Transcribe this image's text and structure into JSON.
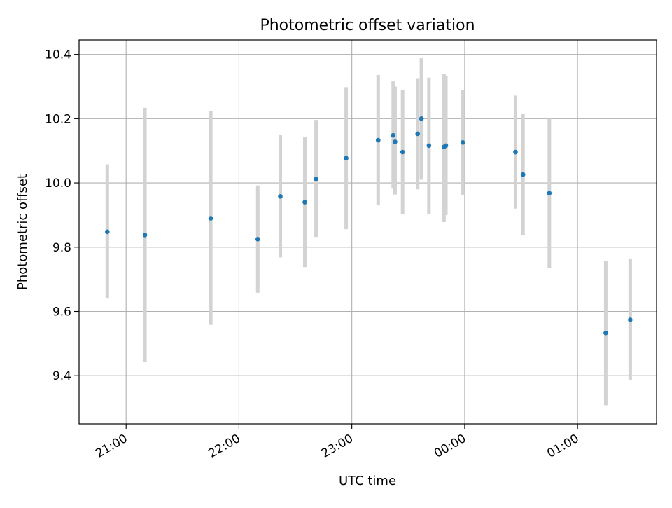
{
  "chart_data": {
    "type": "scatter",
    "title": "Photometric offset variation",
    "xlabel": "UTC time",
    "ylabel": "Photometric offset",
    "x_axis_kind": "time",
    "xlim": [
      "20:35",
      "01:42"
    ],
    "ylim": [
      9.25,
      10.445
    ],
    "xticks": [
      {
        "label": "21:00",
        "time": "21:00"
      },
      {
        "label": "22:00",
        "time": "22:00"
      },
      {
        "label": "23:00",
        "time": "23:00"
      },
      {
        "label": "00:00",
        "time": "00:00"
      },
      {
        "label": "01:00",
        "time": "01:00"
      }
    ],
    "yticks": [
      "9.4",
      "9.6",
      "9.8",
      "10.0",
      "10.2",
      "10.4"
    ],
    "grid": true,
    "colors": {
      "point": "#1f77b4",
      "errorbar": "#d3d3d3",
      "grid": "#b0b0b0",
      "axes": "#000000"
    },
    "points": [
      {
        "time": "20:50",
        "y": 9.848,
        "ylow": 9.64,
        "yhigh": 10.058
      },
      {
        "time": "21:10",
        "y": 9.838,
        "ylow": 9.442,
        "yhigh": 10.234
      },
      {
        "time": "21:45",
        "y": 9.89,
        "ylow": 9.558,
        "yhigh": 10.224
      },
      {
        "time": "22:10",
        "y": 9.825,
        "ylow": 9.658,
        "yhigh": 9.992
      },
      {
        "time": "22:22",
        "y": 9.958,
        "ylow": 9.768,
        "yhigh": 10.15
      },
      {
        "time": "22:35",
        "y": 9.94,
        "ylow": 9.738,
        "yhigh": 10.144
      },
      {
        "time": "22:41",
        "y": 10.012,
        "ylow": 9.832,
        "yhigh": 10.196
      },
      {
        "time": "22:57",
        "y": 10.077,
        "ylow": 9.856,
        "yhigh": 10.298
      },
      {
        "time": "23:14",
        "y": 10.133,
        "ylow": 9.93,
        "yhigh": 10.336
      },
      {
        "time": "23:22",
        "y": 10.148,
        "ylow": 9.982,
        "yhigh": 10.316
      },
      {
        "time": "23:23",
        "y": 10.128,
        "ylow": 9.964,
        "yhigh": 10.3
      },
      {
        "time": "23:27",
        "y": 10.096,
        "ylow": 9.904,
        "yhigh": 10.288
      },
      {
        "time": "23:35",
        "y": 10.153,
        "ylow": 9.98,
        "yhigh": 10.324
      },
      {
        "time": "23:37",
        "y": 10.2,
        "ylow": 10.01,
        "yhigh": 10.388
      },
      {
        "time": "23:41",
        "y": 10.116,
        "ylow": 9.902,
        "yhigh": 10.328
      },
      {
        "time": "23:49",
        "y": 10.112,
        "ylow": 9.878,
        "yhigh": 10.34
      },
      {
        "time": "23:50",
        "y": 10.116,
        "ylow": 9.9,
        "yhigh": 10.334
      },
      {
        "time": "23:59",
        "y": 10.126,
        "ylow": 9.962,
        "yhigh": 10.29
      },
      {
        "time": "00:27",
        "y": 10.096,
        "ylow": 9.92,
        "yhigh": 10.272
      },
      {
        "time": "00:31",
        "y": 10.026,
        "ylow": 9.838,
        "yhigh": 10.214
      },
      {
        "time": "00:45",
        "y": 9.968,
        "ylow": 9.734,
        "yhigh": 10.2
      },
      {
        "time": "01:15",
        "y": 9.533,
        "ylow": 9.308,
        "yhigh": 9.756
      },
      {
        "time": "01:28",
        "y": 9.574,
        "ylow": 9.386,
        "yhigh": 9.764
      }
    ]
  }
}
